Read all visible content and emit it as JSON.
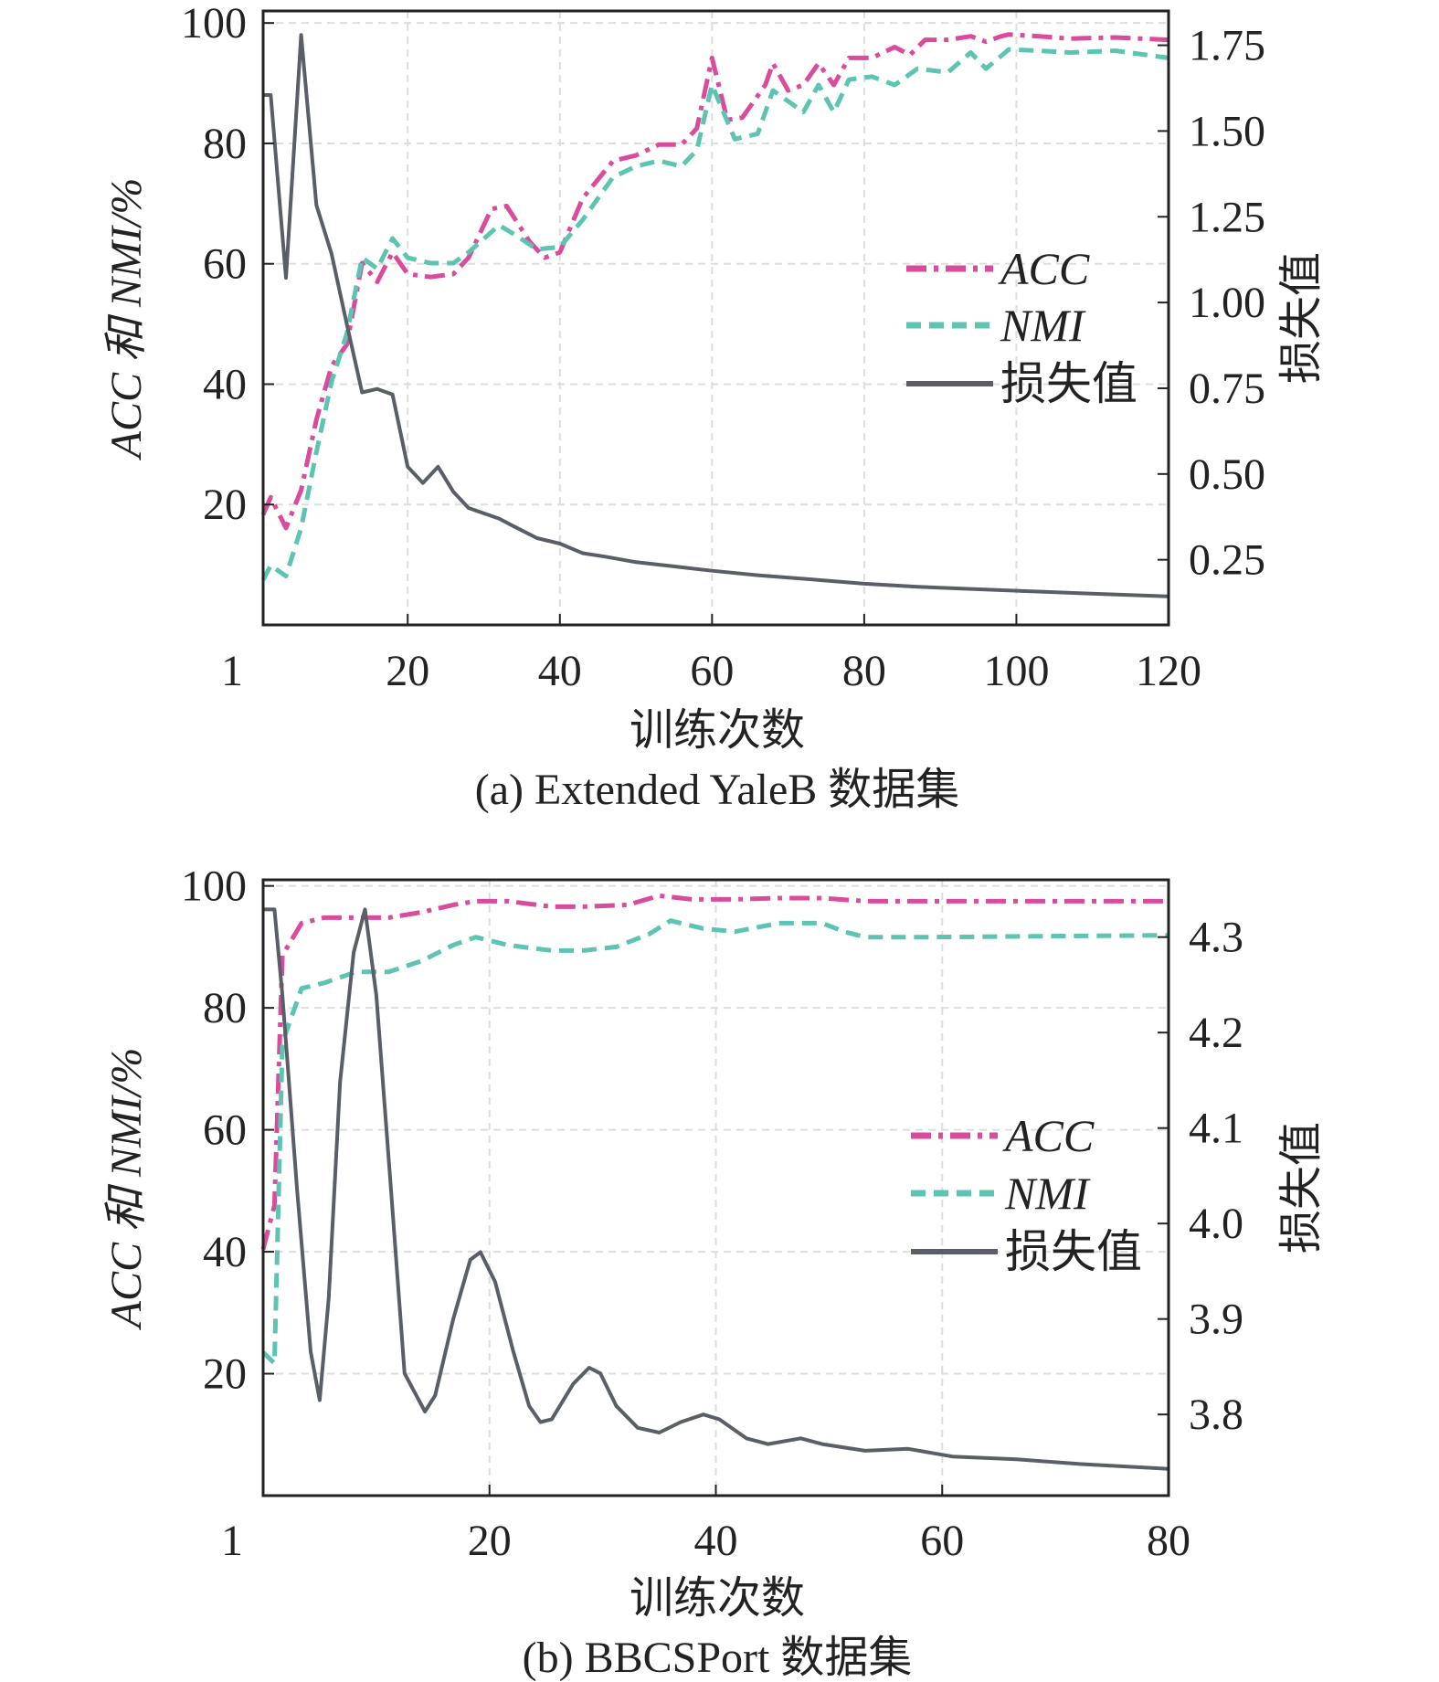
{
  "chart_data": [
    {
      "type": "line",
      "caption": "(a)  Extended YaleB 数据集",
      "xlabel": "训练次数",
      "ylabel_left": "ACC 和 NMI/%",
      "ylabel_right": "损失值",
      "xlim": [
        1,
        120
      ],
      "ylim_left": [
        0,
        102
      ],
      "ylim_right": [
        0.06,
        1.85
      ],
      "xticks": [
        1,
        20,
        40,
        60,
        80,
        100,
        120
      ],
      "xtick_labels": [
        "1",
        "20",
        "40",
        "60",
        "80",
        "100",
        "120"
      ],
      "yticks_left": [
        20,
        40,
        60,
        80,
        100
      ],
      "yticks_left_labels": [
        "20",
        "40",
        "60",
        "80",
        "100"
      ],
      "yticks_right": [
        0.25,
        0.5,
        0.75,
        1.0,
        1.25,
        1.5,
        1.75
      ],
      "yticks_right_labels": [
        "0.25",
        "0.50",
        "0.75",
        "1.00",
        "1.25",
        "1.50",
        "1.75"
      ],
      "grid": true,
      "legend_position": "center-right",
      "series": [
        {
          "name": "ACC",
          "axis": "left",
          "color": "#d94c9b",
          "style": "dashdot",
          "x": [
            1,
            2,
            4,
            6,
            8,
            10,
            12,
            14,
            16,
            18,
            20,
            23,
            26,
            28,
            31,
            33,
            36,
            38,
            40,
            43,
            47,
            50,
            53,
            56,
            58,
            60,
            62,
            64,
            67,
            68,
            70,
            72,
            74,
            76,
            78,
            81,
            84,
            86,
            88,
            91,
            94,
            96,
            98,
            99,
            103,
            107,
            113,
            120
          ],
          "y": [
            18.3,
            21.2,
            16.1,
            22.4,
            34.1,
            43,
            46.6,
            60.1,
            57,
            61.9,
            58.3,
            57.8,
            58.3,
            61,
            69.1,
            69.6,
            63.7,
            61,
            61.9,
            70.9,
            77.1,
            78,
            79.8,
            79.8,
            82.5,
            94.2,
            83.9,
            84.3,
            89.7,
            93.3,
            88.8,
            89.7,
            93.3,
            89.7,
            94.2,
            94.2,
            96,
            94.7,
            97.2,
            97.2,
            97.8,
            96.9,
            97.8,
            98.1,
            97.8,
            97.4,
            97.6,
            97.2
          ]
        },
        {
          "name": "NMI",
          "axis": "left",
          "color": "#5cc4b0",
          "style": "dashed",
          "x": [
            1,
            2,
            4,
            6,
            8,
            10,
            12,
            14,
            16,
            18,
            20,
            23,
            26,
            28,
            32,
            34,
            37,
            40,
            43,
            47,
            50,
            53,
            56,
            58,
            60,
            63,
            66,
            68,
            72,
            74,
            76,
            78,
            81,
            84,
            87,
            91,
            94,
            96,
            99,
            103,
            107,
            113,
            120
          ],
          "y": [
            7.5,
            9.9,
            8.1,
            16.1,
            28.7,
            40.4,
            48.4,
            61,
            59.2,
            64.2,
            61,
            60.1,
            60.1,
            61.9,
            66.4,
            64.9,
            62.4,
            62.8,
            67.3,
            74.4,
            76.2,
            77.1,
            76.2,
            78.9,
            89.7,
            80.7,
            81.6,
            88.8,
            85.2,
            89.7,
            85.2,
            90.6,
            91.1,
            89.7,
            92.4,
            91.8,
            95.1,
            92.4,
            95.6,
            95.4,
            95.1,
            95.4,
            94.2
          ]
        },
        {
          "name": "损失值",
          "axis": "right",
          "color": "#5a5e66",
          "style": "solid",
          "x": [
            1,
            2,
            4,
            6,
            8,
            10,
            12,
            14,
            16,
            18,
            20,
            22,
            24,
            26,
            28,
            32,
            34,
            37,
            40,
            43,
            46,
            50,
            56,
            60,
            66,
            73,
            80,
            87,
            94,
            102,
            109,
            120
          ],
          "y": [
            1.605,
            1.605,
            1.072,
            1.78,
            1.284,
            1.142,
            0.937,
            0.738,
            0.748,
            0.732,
            0.521,
            0.474,
            0.521,
            0.448,
            0.401,
            0.37,
            0.347,
            0.313,
            0.297,
            0.269,
            0.259,
            0.243,
            0.228,
            0.218,
            0.205,
            0.193,
            0.18,
            0.171,
            0.165,
            0.158,
            0.152,
            0.143
          ]
        }
      ]
    },
    {
      "type": "line",
      "caption": "(b)  BBCSPort 数据集",
      "xlabel": "训练次数",
      "ylabel_left": "ACC 和 NMI/%",
      "ylabel_right": "损失值",
      "xlim": [
        0,
        80
      ],
      "ylim_left": [
        0,
        101
      ],
      "ylim_right": [
        3.715,
        4.36
      ],
      "xticks": [
        0,
        20,
        40,
        60,
        80
      ],
      "xtick_labels": [
        "1",
        "20",
        "40",
        "60",
        "80"
      ],
      "yticks_left": [
        20,
        40,
        60,
        80,
        100
      ],
      "yticks_left_labels": [
        "20",
        "40",
        "60",
        "80",
        "100"
      ],
      "yticks_right": [
        3.8,
        3.9,
        4.0,
        4.1,
        4.2,
        4.3
      ],
      "yticks_right_labels": [
        "3.8",
        "3.9",
        "4.0",
        "4.1",
        "4.2",
        "4.3"
      ],
      "grid": true,
      "legend_position": "center-right",
      "series": [
        {
          "name": "ACC",
          "axis": "left",
          "color": "#d94c9b",
          "style": "dashdot",
          "x": [
            0,
            1,
            1.7,
            3.4,
            5.4,
            8.2,
            11.1,
            14,
            16.8,
            18.8,
            21.6,
            25.5,
            28.3,
            32.2,
            35,
            37.9,
            41.7,
            45.6,
            49.4,
            53.2,
            57,
            62.8,
            72.3,
            80
          ],
          "y": [
            40.4,
            47.6,
            88.6,
            93.9,
            94.8,
            94.8,
            94.8,
            95.7,
            96.9,
            97.5,
            97.5,
            96.6,
            96.6,
            96.9,
            98.4,
            97.8,
            97.8,
            98,
            98,
            97.5,
            97.5,
            97.5,
            97.5,
            97.5
          ]
        },
        {
          "name": "NMI",
          "axis": "left",
          "color": "#5cc4b0",
          "style": "dashed",
          "x": [
            0,
            1,
            1.7,
            3.4,
            5.4,
            8.2,
            11.1,
            14,
            16.8,
            18.8,
            21.6,
            25.5,
            28.3,
            31.2,
            34.1,
            36,
            38.9,
            41.7,
            45.6,
            49.4,
            51.3,
            53.2,
            58.9,
            72.3,
            80
          ],
          "y": [
            23.5,
            21.7,
            74.3,
            83.2,
            84.1,
            85.9,
            85.9,
            87.7,
            90.3,
            91.6,
            90.3,
            89.4,
            89.4,
            90,
            92.1,
            94.3,
            93,
            92.5,
            93.9,
            93.9,
            92.5,
            91.6,
            91.6,
            91.8,
            91.9
          ]
        },
        {
          "name": "损失值",
          "axis": "right",
          "color": "#5a5e66",
          "style": "solid",
          "x": [
            0,
            1,
            1.7,
            3,
            4.2,
            5,
            5.8,
            6.8,
            8,
            9,
            10,
            11.3,
            12.5,
            14.3,
            15.2,
            16.8,
            18.3,
            19.2,
            20.5,
            22.1,
            23.5,
            24.5,
            25.5,
            27.4,
            28.8,
            29.8,
            31.2,
            33.1,
            35,
            36.9,
            38.9,
            40.3,
            42.7,
            44.6,
            47.5,
            49.4,
            53.2,
            57,
            60.9,
            66.6,
            72.3,
            80
          ],
          "y": [
            4.329,
            4.329,
            4.239,
            4.035,
            3.866,
            3.815,
            3.922,
            4.148,
            4.284,
            4.329,
            4.239,
            4.035,
            3.843,
            3.803,
            3.82,
            3.9,
            3.962,
            3.97,
            3.939,
            3.866,
            3.809,
            3.792,
            3.795,
            3.832,
            3.849,
            3.843,
            3.809,
            3.786,
            3.781,
            3.792,
            3.8,
            3.795,
            3.775,
            3.769,
            3.775,
            3.769,
            3.762,
            3.764,
            3.756,
            3.753,
            3.748,
            3.743
          ]
        }
      ]
    }
  ]
}
